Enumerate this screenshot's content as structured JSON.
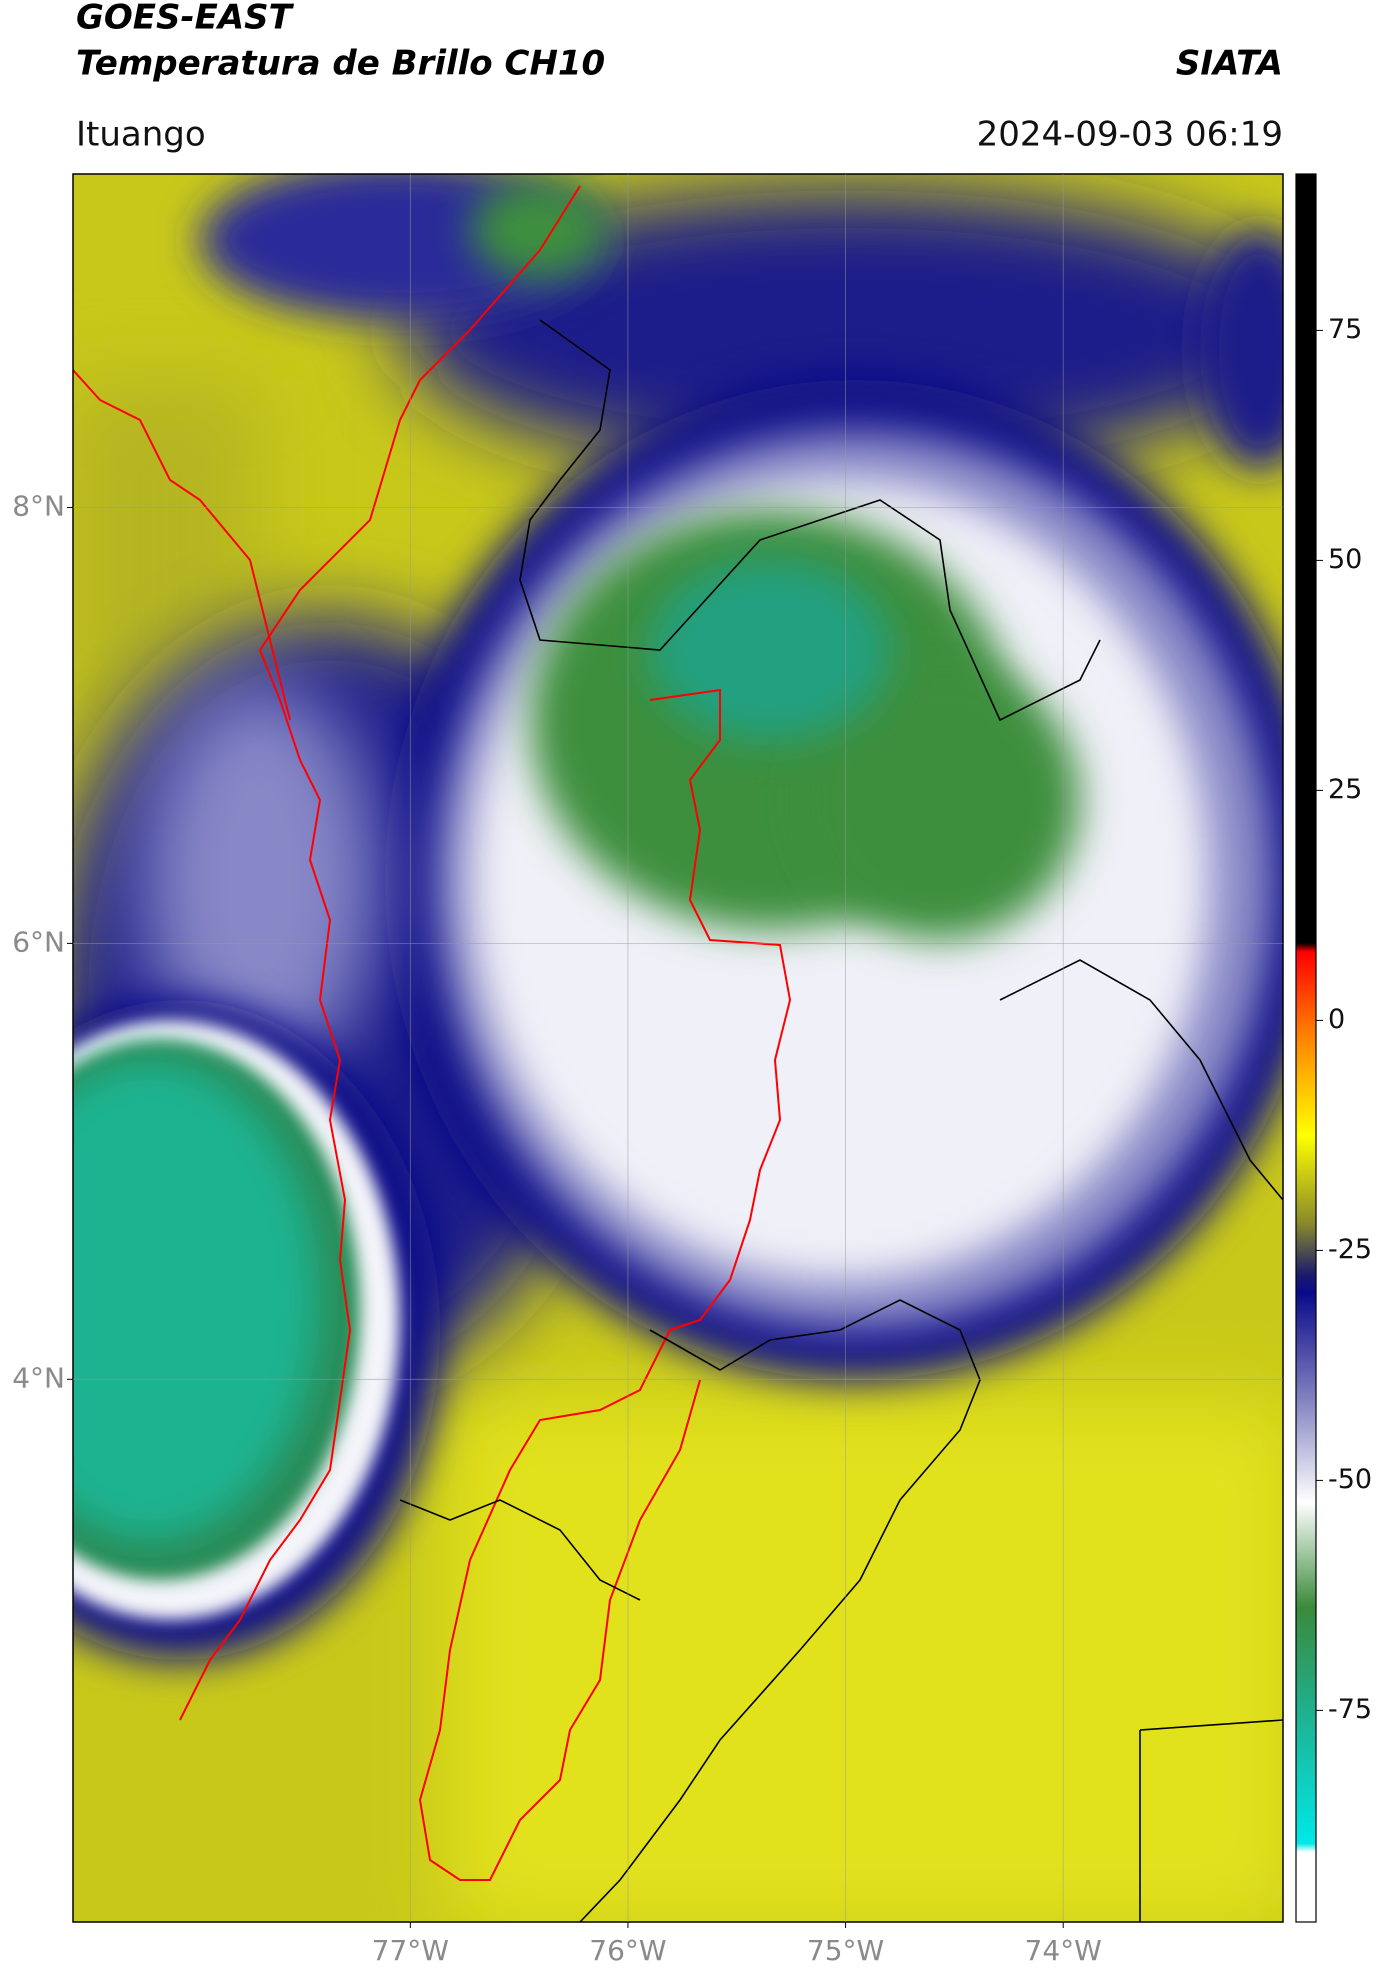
{
  "header": {
    "title": "GOES-EAST",
    "subtitle": "Temperatura de Brillo CH10",
    "source": "SIATA",
    "location": "Ituango",
    "datetime": "2024-09-03 06:19"
  },
  "map": {
    "lonlim": [
      -78.55,
      -72.99
    ],
    "latlim": [
      1.51,
      9.53
    ],
    "lat_ticks": [
      {
        "value": 8,
        "label": "8°N"
      },
      {
        "value": 6,
        "label": "6°N"
      },
      {
        "value": 4,
        "label": "4°N"
      }
    ],
    "lon_ticks": [
      {
        "value": -77,
        "label": "77°W"
      },
      {
        "value": -76,
        "label": "76°W"
      },
      {
        "value": -75,
        "label": "75°W"
      },
      {
        "value": -74,
        "label": "74°W"
      }
    ],
    "grid": true
  },
  "colorbar": {
    "lim": [
      -98,
      92
    ],
    "ticks": [
      75,
      50,
      25,
      0,
      -25,
      -50,
      -75
    ]
  }
}
